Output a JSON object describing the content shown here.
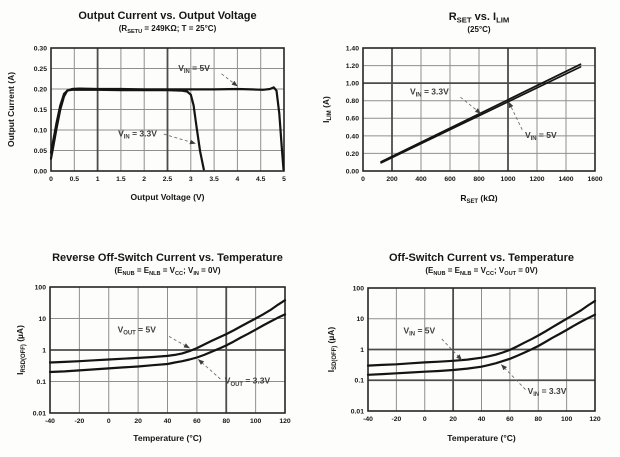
{
  "page": {
    "bg": "#fdfdfc",
    "text_color": "#161616",
    "grid_color": "#8f8f8f",
    "grid_emphasis_color": "#4c4c4c",
    "border_color": "#262626",
    "curve_color": "#141414",
    "annotation_color": "#3d3d3d",
    "arrow_color": "#6f6f6f"
  },
  "chart_data": [
    {
      "name": "Output Current vs. Output Voltage",
      "type": "line",
      "title": [
        {
          "t": "Output Current vs. Output Voltage"
        }
      ],
      "subtitle": [
        {
          "t": "(R"
        },
        {
          "t": "SETU",
          "sub": true
        },
        {
          "t": " = 249KΩ; T =  25°C)"
        }
      ],
      "xlabel": [
        {
          "t": "Output Voltage (V)"
        }
      ],
      "ylabel": [
        {
          "t": "Output Current (A)"
        }
      ],
      "x_range": [
        0,
        5
      ],
      "y_range": [
        0,
        0.3
      ],
      "y_scale": "linear",
      "x_tick_values": [
        0,
        0.5,
        1,
        1.5,
        2,
        2.5,
        3,
        3.5,
        4,
        4.5,
        5
      ],
      "x_tick_labels": [
        "0",
        "0.5",
        "1",
        "1.5",
        "2",
        "2.5",
        "3",
        "3.5",
        "4",
        "4.5",
        "5"
      ],
      "y_tick_values": [
        0,
        0.05,
        0.1,
        0.15,
        0.2,
        0.25,
        0.3
      ],
      "y_tick_labels": [
        "0.00",
        "0.05",
        "0.10",
        "0.15",
        "0.20",
        "0.25",
        "0.30"
      ],
      "emph_x": [
        1,
        2.5
      ],
      "emph_y": [],
      "series": [
        {
          "name": "VIN = 5V",
          "x": [
            0,
            0.05,
            0.12,
            0.2,
            0.28,
            0.35,
            0.45,
            0.6,
            1,
            1.5,
            2,
            2.5,
            3,
            3.5,
            4,
            4.3,
            4.55,
            4.7,
            4.78,
            4.84,
            4.9,
            4.95,
            4.99
          ],
          "y": [
            0.03,
            0.06,
            0.105,
            0.15,
            0.182,
            0.196,
            0.2,
            0.201,
            0.2,
            0.2,
            0.199,
            0.199,
            0.199,
            0.199,
            0.2,
            0.199,
            0.198,
            0.2,
            0.204,
            0.196,
            0.14,
            0.06,
            0.004
          ]
        },
        {
          "name": "VIN = 3.3V",
          "x": [
            0,
            0.05,
            0.12,
            0.2,
            0.28,
            0.35,
            0.45,
            0.6,
            1,
            1.5,
            2,
            2.5,
            2.8,
            2.92,
            3.0,
            3.06,
            3.12,
            3.2,
            3.28
          ],
          "y": [
            0.045,
            0.075,
            0.118,
            0.16,
            0.188,
            0.196,
            0.198,
            0.198,
            0.198,
            0.197,
            0.197,
            0.197,
            0.196,
            0.194,
            0.186,
            0.16,
            0.11,
            0.048,
            0.004
          ]
        }
      ],
      "annotations": [
        {
          "label": [
            {
              "t": "V"
            },
            {
              "t": "IN",
              "sub": true
            },
            {
              "t": " = 5V"
            }
          ],
          "x": 2.73,
          "y": 0.244,
          "arrow": [
            3.66,
            0.237,
            4.0,
            0.207
          ]
        },
        {
          "label": [
            {
              "t": "V"
            },
            {
              "t": "IN",
              "sub": true
            },
            {
              "t": " = 3.3V"
            }
          ],
          "x": 1.44,
          "y": 0.084,
          "arrow": [
            2.42,
            0.09,
            3.1,
            0.067
          ]
        }
      ]
    },
    {
      "name": "RSET vs. ILIM",
      "type": "line",
      "title": [
        {
          "t": "R"
        },
        {
          "t": "SET",
          "sub": true
        },
        {
          "t": " vs. I"
        },
        {
          "t": "LIM",
          "sub": true
        }
      ],
      "subtitle": [
        {
          "t": "(25°C)"
        }
      ],
      "xlabel": [
        {
          "t": "R"
        },
        {
          "t": "SET",
          "sub": true
        },
        {
          "t": " (kΩ)"
        }
      ],
      "ylabel": [
        {
          "t": "I"
        },
        {
          "t": "LIM",
          "sub": true
        },
        {
          "t": " (A)"
        }
      ],
      "x_range": [
        0,
        1600
      ],
      "y_range": [
        0,
        1.4
      ],
      "y_scale": "linear",
      "x_tick_values": [
        0,
        200,
        400,
        600,
        800,
        1000,
        1200,
        1400,
        1600
      ],
      "x_tick_labels": [
        "0",
        "200",
        "400",
        "600",
        "800",
        "1000",
        "1200",
        "1400",
        "1600"
      ],
      "y_tick_values": [
        0,
        0.2,
        0.4,
        0.6,
        0.8,
        1.0,
        1.2,
        1.4
      ],
      "y_tick_labels": [
        "0.00",
        "0.20",
        "0.40",
        "0.60",
        "0.80",
        "1.00",
        "1.20",
        "1.40"
      ],
      "emph_x": [
        200,
        1000
      ],
      "emph_y": [
        1.0
      ],
      "series": [
        {
          "name": "VIN = 3.3V",
          "x": [
            125,
            1500
          ],
          "y": [
            0.105,
            1.215
          ]
        },
        {
          "name": "VIN = 5V",
          "x": [
            125,
            1500
          ],
          "y": [
            0.093,
            1.185
          ]
        }
      ],
      "annotations": [
        {
          "label": [
            {
              "t": "V"
            },
            {
              "t": "IN",
              "sub": true
            },
            {
              "t": " = 3.3V"
            }
          ],
          "x": 324,
          "y": 0.87,
          "arrow": [
            672,
            0.84,
            812,
            0.655
          ]
        },
        {
          "label": [
            {
              "t": "V"
            },
            {
              "t": "IN",
              "sub": true
            },
            {
              "t": " = 5V"
            }
          ],
          "x": 1117,
          "y": 0.375,
          "arrow": [
            1098,
            0.47,
            1005,
            0.785
          ]
        }
      ]
    },
    {
      "name": "Reverse Off-Switch Current vs. Temperature",
      "type": "line",
      "title": [
        {
          "t": "Reverse Off-Switch Current vs. Temperature"
        }
      ],
      "subtitle": [
        {
          "t": "(E"
        },
        {
          "t": "NUB",
          "sub": true
        },
        {
          "t": " = E"
        },
        {
          "t": "NLB",
          "sub": true
        },
        {
          "t": " = V"
        },
        {
          "t": "CC",
          "sub": true
        },
        {
          "t": "; V"
        },
        {
          "t": "IN",
          "sub": true
        },
        {
          "t": " = 0V)"
        }
      ],
      "xlabel": [
        {
          "t": "Temperature (°C)"
        }
      ],
      "ylabel": [
        {
          "t": "I"
        },
        {
          "t": "RSD(OFF)",
          "sub": true
        },
        {
          "t": " (µA)"
        }
      ],
      "x_range": [
        -40,
        120
      ],
      "y_range": [
        0.01,
        100
      ],
      "y_scale": "log",
      "x_tick_values": [
        -40,
        -20,
        0,
        20,
        40,
        60,
        80,
        100,
        120
      ],
      "x_tick_labels": [
        "-40",
        "-20",
        "0",
        "20",
        "40",
        "60",
        "80",
        "100",
        "120"
      ],
      "y_tick_values": [
        100,
        10,
        1,
        0.1,
        0.01
      ],
      "y_tick_labels": [
        "100",
        "10",
        "1",
        "0.1",
        "0.01"
      ],
      "emph_x": [
        80
      ],
      "emph_y": [
        1.0
      ],
      "series": [
        {
          "name": "VOUT = 5V",
          "x": [
            -40,
            -30,
            -20,
            -10,
            0,
            10,
            20,
            30,
            40,
            45,
            50,
            55,
            60,
            65,
            70,
            75,
            80,
            85,
            90,
            95,
            100,
            105,
            110,
            115,
            120
          ],
          "y": [
            0.4,
            0.42,
            0.44,
            0.47,
            0.5,
            0.53,
            0.56,
            0.6,
            0.65,
            0.7,
            0.78,
            0.92,
            1.15,
            1.5,
            1.95,
            2.5,
            3.2,
            4.2,
            5.6,
            7.5,
            10,
            13.5,
            18.5,
            27,
            38
          ]
        },
        {
          "name": "VOUT = 3.3V",
          "x": [
            -40,
            -30,
            -20,
            -10,
            0,
            10,
            20,
            30,
            40,
            45,
            50,
            55,
            60,
            65,
            70,
            75,
            80,
            85,
            90,
            95,
            100,
            105,
            110,
            115,
            120
          ],
          "y": [
            0.2,
            0.21,
            0.225,
            0.242,
            0.26,
            0.28,
            0.3,
            0.33,
            0.36,
            0.4,
            0.44,
            0.5,
            0.58,
            0.7,
            0.88,
            1.1,
            1.4,
            1.85,
            2.5,
            3.3,
            4.4,
            6.0,
            8.0,
            10.5,
            13.5
          ]
        }
      ],
      "annotations": [
        {
          "label": [
            {
              "t": "V"
            },
            {
              "t": "OUT",
              "sub": true
            },
            {
              "t": " = 5V"
            }
          ],
          "x": 6,
          "y": 3.6,
          "arrow": [
            41,
            2.7,
            55,
            1.15
          ]
        },
        {
          "label": [
            {
              "t": "V"
            },
            {
              "t": "OUT",
              "sub": true
            },
            {
              "t": " = 3.3V"
            }
          ],
          "x": 79,
          "y": 0.085,
          "arrow": [
            76,
            0.12,
            61,
            0.5
          ]
        }
      ]
    },
    {
      "name": "Off-Switch Current vs. Temperature",
      "type": "line",
      "title": [
        {
          "t": "Off-Switch Current vs. Temperature"
        }
      ],
      "subtitle": [
        {
          "t": "(E"
        },
        {
          "t": "NUB",
          "sub": true
        },
        {
          "t": " = E"
        },
        {
          "t": "NLB",
          "sub": true
        },
        {
          "t": " = V"
        },
        {
          "t": "CC",
          "sub": true
        },
        {
          "t": "; V"
        },
        {
          "t": "OUT",
          "sub": true
        },
        {
          "t": " = 0V)"
        }
      ],
      "xlabel": [
        {
          "t": "Temperature (°C)"
        }
      ],
      "ylabel": [
        {
          "t": "I"
        },
        {
          "t": "SD(OFF)",
          "sub": true
        },
        {
          "t": " (µA)"
        }
      ],
      "x_range": [
        -40,
        120
      ],
      "y_range": [
        0.01,
        100
      ],
      "y_scale": "log",
      "x_tick_values": [
        -40,
        -20,
        0,
        20,
        40,
        60,
        80,
        100,
        120
      ],
      "x_tick_labels": [
        "-40",
        "-20",
        "0",
        "20",
        "40",
        "60",
        "80",
        "100",
        "120"
      ],
      "y_tick_values": [
        100,
        10,
        1,
        0.1,
        0.01
      ],
      "y_tick_labels": [
        "100",
        "10",
        "1",
        "0.1",
        "0.01"
      ],
      "emph_x": [
        20
      ],
      "emph_y": [
        1.0,
        0.1
      ],
      "series": [
        {
          "name": "VIN = 5V",
          "x": [
            -40,
            -30,
            -20,
            -10,
            0,
            10,
            20,
            30,
            40,
            45,
            50,
            55,
            60,
            65,
            70,
            75,
            80,
            85,
            90,
            95,
            100,
            105,
            110,
            115,
            120
          ],
          "y": [
            0.3,
            0.315,
            0.33,
            0.355,
            0.38,
            0.4,
            0.43,
            0.47,
            0.54,
            0.6,
            0.68,
            0.8,
            0.97,
            1.25,
            1.65,
            2.15,
            2.85,
            3.85,
            5.3,
            7.3,
            10,
            13.5,
            18.5,
            27,
            38
          ]
        },
        {
          "name": "VIN = 3.3V",
          "x": [
            -40,
            -30,
            -20,
            -10,
            0,
            10,
            20,
            30,
            40,
            45,
            50,
            55,
            60,
            65,
            70,
            75,
            80,
            85,
            90,
            95,
            100,
            105,
            110,
            115,
            120
          ],
          "y": [
            0.15,
            0.158,
            0.168,
            0.178,
            0.19,
            0.2,
            0.215,
            0.24,
            0.275,
            0.31,
            0.355,
            0.42,
            0.5,
            0.62,
            0.78,
            1.0,
            1.3,
            1.75,
            2.4,
            3.2,
            4.3,
            5.9,
            7.9,
            10.4,
            13.5
          ]
        }
      ],
      "annotations": [
        {
          "label": [
            {
              "t": "V"
            },
            {
              "t": "IN",
              "sub": true
            },
            {
              "t": " = 5V"
            }
          ],
          "x": -15,
          "y": 3.3,
          "arrow": [
            12,
            2.2,
            26,
            0.46
          ]
        },
        {
          "label": [
            {
              "t": "V"
            },
            {
              "t": "IN",
              "sub": true
            },
            {
              "t": " = 3.3V"
            }
          ],
          "x": 72.5,
          "y": 0.036,
          "arrow": [
            71,
            0.05,
            54,
            0.32
          ]
        }
      ]
    }
  ]
}
